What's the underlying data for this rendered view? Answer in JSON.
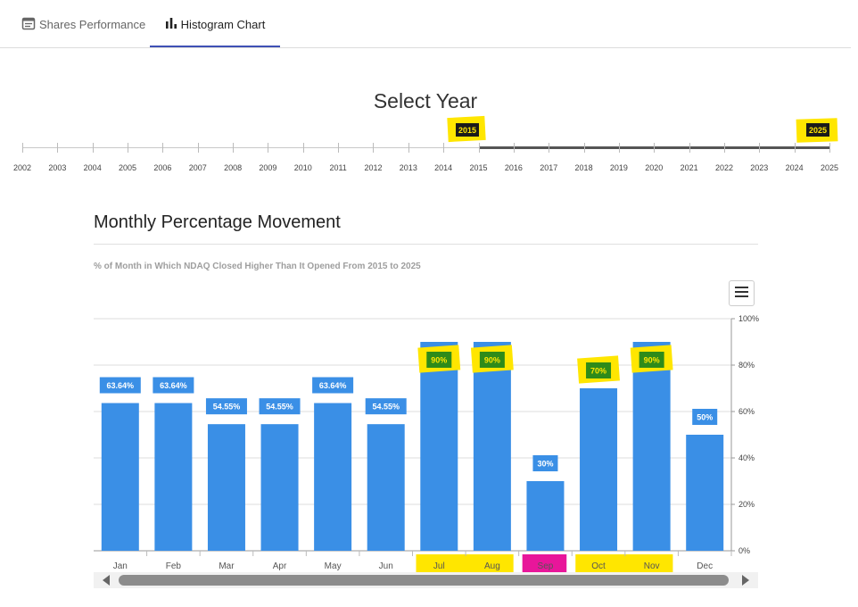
{
  "tabs": [
    {
      "label": "Shares Performance",
      "icon": "calendar-icon",
      "active": false
    },
    {
      "label": "Histogram Chart",
      "icon": "bar-chart-icon",
      "active": true
    }
  ],
  "year_selector": {
    "title": "Select Year",
    "years": [
      "2002",
      "2003",
      "2004",
      "2005",
      "2006",
      "2007",
      "2008",
      "2009",
      "2010",
      "2011",
      "2012",
      "2013",
      "2014",
      "2015",
      "2016",
      "2017",
      "2018",
      "2019",
      "2020",
      "2021",
      "2022",
      "2023",
      "2024",
      "2025"
    ],
    "start_year": "2015",
    "end_year": "2025"
  },
  "chart_header": {
    "title": "Monthly Percentage Movement",
    "subtitle": "% of Month in Which NDAQ Closed Higher Than It Opened From 2015 to 2025"
  },
  "colors": {
    "bar": "#3a8fe6",
    "highlight_yellow": "#ffe600",
    "highlight_green": "#2e8b1a",
    "highlight_pink": "#e8169a",
    "accent": "#3f51b5"
  },
  "chart_data": {
    "type": "bar",
    "categories": [
      "Jan",
      "Feb",
      "Mar",
      "Apr",
      "May",
      "Jun",
      "Jul",
      "Aug",
      "Sep",
      "Oct",
      "Nov",
      "Dec"
    ],
    "values": [
      63.64,
      63.64,
      54.55,
      54.55,
      63.64,
      54.55,
      90,
      90,
      30,
      70,
      90,
      50
    ],
    "data_labels": [
      "63.64%",
      "63.64%",
      "54.55%",
      "54.55%",
      "63.64%",
      "54.55%",
      "90%",
      "90%",
      "30%",
      "70%",
      "90%",
      "50%"
    ],
    "ylim": [
      0,
      100
    ],
    "y_ticks": [
      "0%",
      "20%",
      "40%",
      "60%",
      "80%",
      "100%"
    ],
    "grid": true,
    "y_axis_side": "right",
    "highlighted_data_labels": [
      "Jul",
      "Aug",
      "Oct",
      "Nov"
    ],
    "highlighted_category_labels": {
      "yellow": [
        "Jul",
        "Aug",
        "Oct",
        "Nov"
      ],
      "pink": [
        "Sep"
      ]
    }
  },
  "menu_icon": "hamburger-menu-icon"
}
